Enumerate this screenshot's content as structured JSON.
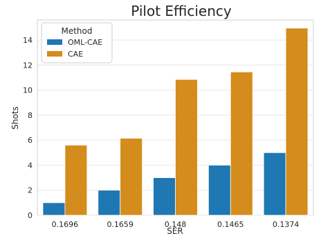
{
  "chart_data": {
    "type": "bar",
    "title": "Pilot Efficiency",
    "xlabel": "SER",
    "ylabel": "Shots",
    "categories": [
      "0.1696",
      "0.1659",
      "0.148",
      "0.1465",
      "0.1374"
    ],
    "series": [
      {
        "name": "OML-CAE",
        "color": "#1f77b4",
        "values": [
          1,
          2,
          3,
          4,
          5
        ]
      },
      {
        "name": "CAE",
        "color": "#d48c1c",
        "values": [
          5.6,
          6.15,
          10.85,
          11.45,
          14.95
        ]
      }
    ],
    "ylim": [
      0,
      15.6
    ],
    "yticks": [
      0,
      2,
      4,
      6,
      8,
      10,
      12,
      14
    ],
    "grid": "horizontal",
    "legend": {
      "title": "Method",
      "placement": "top-left"
    }
  }
}
